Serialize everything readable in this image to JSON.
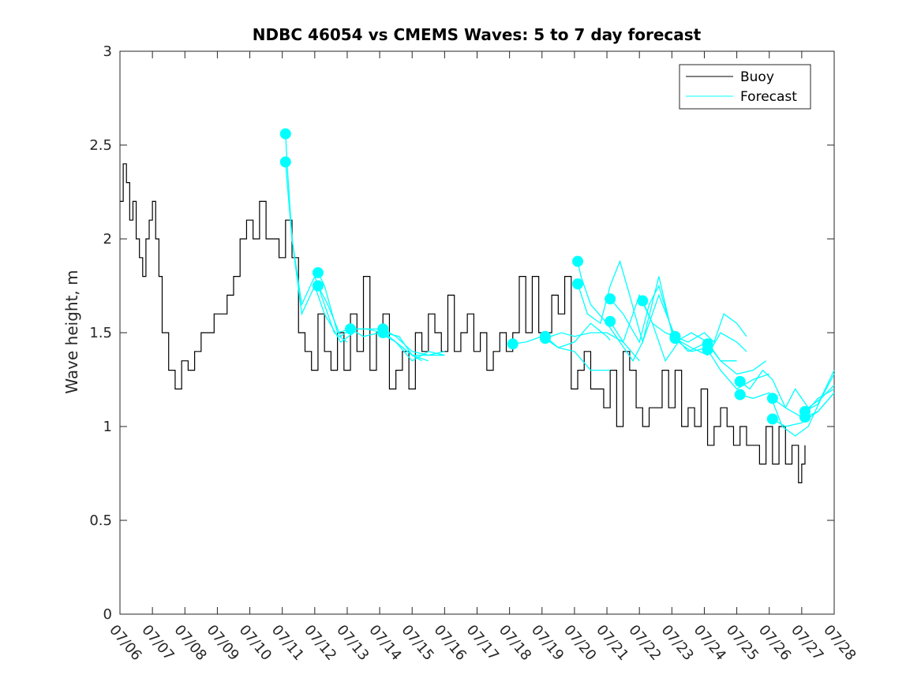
{
  "chart_data": {
    "type": "line",
    "title": "NDBC 46054 vs CMEMS Waves: 5 to 7 day forecast",
    "xlabel": "",
    "ylabel": "Wave height, m",
    "ylim": [
      0,
      3
    ],
    "yticks": [
      0,
      0.5,
      1,
      1.5,
      2,
      2.5,
      3
    ],
    "ytick_labels": [
      "0",
      "0.5",
      "1",
      "1.5",
      "2",
      "2.5",
      "3"
    ],
    "xlim": [
      0,
      22
    ],
    "xtick_labels": [
      "07/06",
      "07/07",
      "07/08",
      "07/09",
      "07/10",
      "07/11",
      "07/12",
      "07/13",
      "07/14",
      "07/15",
      "07/16",
      "07/17",
      "07/18",
      "07/19",
      "07/20",
      "07/21",
      "07/22",
      "07/23",
      "07/24",
      "07/25",
      "07/26",
      "07/27",
      "07/28"
    ],
    "x_unit": "days since 07/06 00:00",
    "grid": false,
    "legend": {
      "position": "top-right",
      "entries": [
        "Buoy",
        "Forecast"
      ]
    },
    "colors": {
      "buoy": "#000000",
      "forecast": "#00FFFF",
      "axis": "#262626"
    },
    "buoy": {
      "x": [
        0.0,
        0.1,
        0.2,
        0.3,
        0.4,
        0.5,
        0.6,
        0.7,
        0.8,
        0.9,
        1.0,
        1.1,
        1.2,
        1.3,
        1.5,
        1.7,
        1.9,
        2.1,
        2.3,
        2.5,
        2.7,
        2.9,
        3.1,
        3.3,
        3.5,
        3.7,
        3.9,
        4.1,
        4.3,
        4.5,
        4.7,
        4.9,
        5.1,
        5.3,
        5.5,
        5.7,
        5.9,
        6.1,
        6.3,
        6.5,
        6.7,
        6.9,
        7.1,
        7.3,
        7.5,
        7.7,
        7.9,
        8.1,
        8.3,
        8.5,
        8.7,
        8.9,
        9.1,
        9.3,
        9.5,
        9.7,
        9.9,
        10.1,
        10.3,
        10.5,
        10.7,
        10.9,
        11.1,
        11.3,
        11.5,
        11.7,
        11.9,
        12.1,
        12.3,
        12.5,
        12.7,
        12.9,
        13.1,
        13.3,
        13.5,
        13.7,
        13.9,
        14.1,
        14.3,
        14.5,
        14.7,
        14.9,
        15.1,
        15.3,
        15.5,
        15.7,
        15.9,
        16.1,
        16.3,
        16.5,
        16.7,
        16.9,
        17.1,
        17.3,
        17.5,
        17.7,
        17.9,
        18.1,
        18.3,
        18.5,
        18.7,
        18.9,
        19.1,
        19.3,
        19.5,
        19.7,
        19.9,
        20.1,
        20.3,
        20.5,
        20.7,
        20.9,
        21.0,
        21.1
      ],
      "y": [
        2.2,
        2.4,
        2.3,
        2.1,
        2.2,
        2.0,
        1.9,
        1.8,
        2.0,
        2.1,
        2.2,
        2.0,
        1.8,
        1.5,
        1.3,
        1.2,
        1.35,
        1.3,
        1.4,
        1.5,
        1.5,
        1.6,
        1.6,
        1.7,
        1.8,
        2.0,
        2.1,
        2.0,
        2.2,
        2.0,
        2.0,
        1.9,
        2.1,
        1.9,
        1.5,
        1.4,
        1.3,
        1.6,
        1.4,
        1.3,
        1.5,
        1.3,
        1.6,
        1.4,
        1.8,
        1.3,
        1.5,
        1.6,
        1.2,
        1.3,
        1.4,
        1.2,
        1.5,
        1.4,
        1.6,
        1.5,
        1.4,
        1.7,
        1.4,
        1.5,
        1.6,
        1.4,
        1.5,
        1.3,
        1.4,
        1.5,
        1.4,
        1.5,
        1.8,
        1.5,
        1.8,
        1.5,
        1.5,
        1.7,
        1.6,
        1.8,
        1.2,
        1.3,
        1.4,
        1.2,
        1.2,
        1.1,
        1.3,
        1.0,
        1.4,
        1.3,
        1.1,
        1.0,
        1.1,
        1.1,
        1.3,
        1.1,
        1.3,
        1.0,
        1.1,
        1.0,
        1.2,
        0.9,
        1.0,
        1.1,
        1.0,
        0.9,
        1.0,
        0.9,
        0.9,
        0.8,
        1.0,
        0.8,
        1.0,
        0.8,
        0.9,
        0.7,
        0.8,
        0.9
      ]
    },
    "forecast_series": [
      {
        "x": [
          5.1,
          5.15,
          5.3,
          5.6,
          6.0,
          6.2,
          6.6,
          7.0
        ],
        "y": [
          2.56,
          2.4,
          2.0,
          1.65,
          1.8,
          1.7,
          1.5,
          1.45
        ]
      },
      {
        "x": [
          5.1,
          5.15,
          5.3,
          5.6,
          6.0,
          6.3,
          6.8,
          7.2
        ],
        "y": [
          2.41,
          2.3,
          2.0,
          1.6,
          1.75,
          1.6,
          1.45,
          1.5
        ]
      },
      {
        "x": [
          6.1,
          6.3,
          6.7,
          7.1,
          7.5,
          8.0,
          8.5,
          9.0,
          9.5,
          10.0
        ],
        "y": [
          1.82,
          1.75,
          1.5,
          1.52,
          1.48,
          1.5,
          1.45,
          1.35,
          1.4,
          1.38
        ]
      },
      {
        "x": [
          6.1,
          6.4,
          6.8,
          7.1,
          7.6,
          8.1,
          8.6,
          9.0,
          9.5,
          10.0
        ],
        "y": [
          1.75,
          1.65,
          1.48,
          1.52,
          1.52,
          1.5,
          1.48,
          1.38,
          1.38,
          1.4
        ]
      },
      {
        "x": [
          7.1,
          7.5,
          8.0,
          8.5,
          9.0,
          9.5
        ],
        "y": [
          1.52,
          1.52,
          1.52,
          1.45,
          1.38,
          1.35
        ]
      },
      {
        "x": [
          8.1,
          8.5,
          9.0,
          9.5,
          10.0
        ],
        "y": [
          1.52,
          1.48,
          1.4,
          1.38,
          1.38
        ]
      },
      {
        "x": [
          8.1,
          8.5,
          9.0,
          9.3
        ],
        "y": [
          1.5,
          1.45,
          1.38,
          1.35
        ]
      },
      {
        "x": [
          12.1,
          12.5,
          13.0,
          13.5,
          14.0,
          14.5,
          15.0,
          15.1
        ],
        "y": [
          1.44,
          1.45,
          1.48,
          1.42,
          1.45,
          1.55,
          1.48,
          1.46
        ]
      },
      {
        "x": [
          13.1,
          13.5,
          14.0,
          14.5,
          15.0,
          15.1
        ],
        "y": [
          1.48,
          1.42,
          1.4,
          1.3,
          1.3,
          1.3
        ]
      },
      {
        "x": [
          13.1,
          13.6,
          14.0,
          14.5,
          15.0,
          15.5,
          16.0
        ],
        "y": [
          1.47,
          1.5,
          1.48,
          1.5,
          1.5,
          1.45,
          1.35
        ]
      },
      {
        "x": [
          14.1,
          14.2,
          14.5,
          15.0,
          15.4,
          15.8,
          16.1,
          16.6,
          17.1
        ],
        "y": [
          1.88,
          1.8,
          1.65,
          1.55,
          1.45,
          1.35,
          1.45,
          1.7,
          1.48
        ]
      },
      {
        "x": [
          14.1,
          14.4,
          14.8,
          15.1,
          15.4,
          15.7,
          16.1,
          16.6,
          17.0
        ],
        "y": [
          1.76,
          1.6,
          1.55,
          1.75,
          1.88,
          1.7,
          1.45,
          1.8,
          1.5
        ]
      },
      {
        "x": [
          15.1,
          15.5,
          16.0,
          16.3,
          16.6,
          17.1,
          17.6,
          18.1
        ],
        "y": [
          1.68,
          1.6,
          1.45,
          1.65,
          1.75,
          1.45,
          1.5,
          1.45
        ]
      },
      {
        "x": [
          15.1,
          15.5,
          16.0,
          16.4,
          16.8,
          17.2,
          17.6,
          18.1
        ],
        "y": [
          1.56,
          1.45,
          1.7,
          1.55,
          1.35,
          1.45,
          1.4,
          1.42
        ]
      },
      {
        "x": [
          16.1,
          16.4,
          16.8,
          17.1,
          17.5,
          18.1,
          18.5,
          19.0
        ],
        "y": [
          1.67,
          1.55,
          1.5,
          1.48,
          1.4,
          1.45,
          1.35,
          1.35
        ]
      },
      {
        "x": [
          17.1,
          17.5,
          18.0,
          18.3,
          18.6,
          19.0,
          19.3
        ],
        "y": [
          1.48,
          1.45,
          1.5,
          1.45,
          1.6,
          1.55,
          1.48
        ]
      },
      {
        "x": [
          17.1,
          17.6,
          18.1,
          18.5,
          19.0,
          19.3
        ],
        "y": [
          1.47,
          1.42,
          1.38,
          1.5,
          1.45,
          1.4
        ]
      },
      {
        "x": [
          18.1,
          18.5,
          19.0,
          19.5,
          19.9
        ],
        "y": [
          1.44,
          1.35,
          1.28,
          1.3,
          1.35
        ]
      },
      {
        "x": [
          18.1,
          18.5,
          19.0,
          19.5,
          20.0
        ],
        "y": [
          1.41,
          1.3,
          1.2,
          1.25,
          1.28
        ]
      },
      {
        "x": [
          19.1,
          19.4,
          19.8,
          20.1,
          20.5,
          21.0,
          21.5,
          22.0
        ],
        "y": [
          1.24,
          1.2,
          1.3,
          1.25,
          1.1,
          1.05,
          1.15,
          1.2
        ]
      },
      {
        "x": [
          19.1,
          19.5,
          20.0,
          20.4,
          20.8,
          21.2,
          21.6,
          22.0
        ],
        "y": [
          1.17,
          1.15,
          1.18,
          1.0,
          0.95,
          1.0,
          1.15,
          1.28
        ]
      },
      {
        "x": [
          20.1,
          20.5,
          20.8,
          21.2,
          21.6,
          22.0
        ],
        "y": [
          1.15,
          1.1,
          1.2,
          1.1,
          1.15,
          1.22
        ]
      },
      {
        "x": [
          20.1,
          20.5,
          21.0,
          21.5,
          22.0
        ],
        "y": [
          1.04,
          1.0,
          1.02,
          1.08,
          1.18
        ]
      },
      {
        "x": [
          21.1,
          21.5,
          22.0
        ],
        "y": [
          1.08,
          1.12,
          1.3
        ]
      },
      {
        "x": [
          21.1,
          21.5,
          22.0
        ],
        "y": [
          1.05,
          1.08,
          1.18
        ]
      }
    ],
    "forecast_start_markers": [
      {
        "x": 5.1,
        "y": 2.56
      },
      {
        "x": 5.1,
        "y": 2.41
      },
      {
        "x": 6.1,
        "y": 1.82
      },
      {
        "x": 6.1,
        "y": 1.75
      },
      {
        "x": 7.1,
        "y": 1.52
      },
      {
        "x": 8.1,
        "y": 1.52
      },
      {
        "x": 8.1,
        "y": 1.5
      },
      {
        "x": 12.1,
        "y": 1.44
      },
      {
        "x": 13.1,
        "y": 1.48
      },
      {
        "x": 13.1,
        "y": 1.47
      },
      {
        "x": 14.1,
        "y": 1.88
      },
      {
        "x": 14.1,
        "y": 1.76
      },
      {
        "x": 15.1,
        "y": 1.68
      },
      {
        "x": 15.1,
        "y": 1.56
      },
      {
        "x": 16.1,
        "y": 1.67
      },
      {
        "x": 17.1,
        "y": 1.48
      },
      {
        "x": 17.1,
        "y": 1.47
      },
      {
        "x": 18.1,
        "y": 1.44
      },
      {
        "x": 18.1,
        "y": 1.41
      },
      {
        "x": 19.1,
        "y": 1.24
      },
      {
        "x": 19.1,
        "y": 1.17
      },
      {
        "x": 20.1,
        "y": 1.15
      },
      {
        "x": 20.1,
        "y": 1.04
      },
      {
        "x": 21.1,
        "y": 1.08
      },
      {
        "x": 21.1,
        "y": 1.05
      }
    ]
  }
}
